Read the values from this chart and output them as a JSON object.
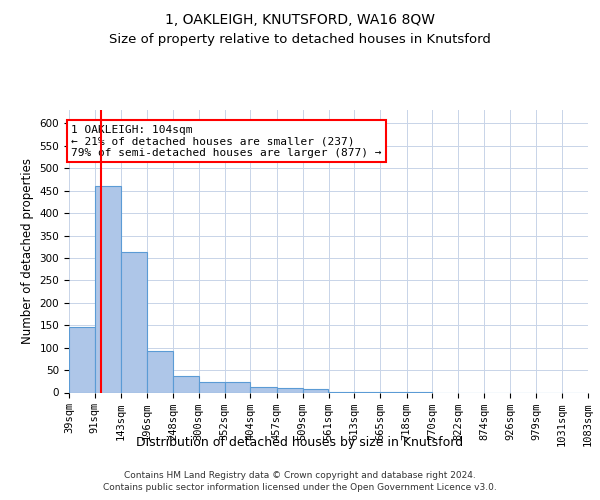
{
  "title": "1, OAKLEIGH, KNUTSFORD, WA16 8QW",
  "subtitle": "Size of property relative to detached houses in Knutsford",
  "xlabel": "Distribution of detached houses by size in Knutsford",
  "ylabel": "Number of detached properties",
  "bin_edges": [
    39,
    91,
    143,
    196,
    248,
    300,
    352,
    404,
    457,
    509,
    561,
    613,
    665,
    718,
    770,
    822,
    874,
    926,
    979,
    1031,
    1083
  ],
  "bar_heights": [
    147,
    460,
    313,
    93,
    37,
    23,
    23,
    13,
    10,
    7,
    2,
    2,
    1,
    1,
    0,
    0,
    0,
    0,
    0,
    0
  ],
  "bar_color": "#aec6e8",
  "bar_edgecolor": "#5b9bd5",
  "grid_color": "#c8d4e8",
  "red_line_x": 104,
  "annotation_line1": "1 OAKLEIGH: 104sqm",
  "annotation_line2": "← 21% of detached houses are smaller (237)",
  "annotation_line3": "79% of semi-detached houses are larger (877) →",
  "ylim_max": 630,
  "yticks": [
    0,
    50,
    100,
    150,
    200,
    250,
    300,
    350,
    400,
    450,
    500,
    550,
    600
  ],
  "footer": "Contains HM Land Registry data © Crown copyright and database right 2024.\nContains public sector information licensed under the Open Government Licence v3.0.",
  "title_fontsize": 10,
  "subtitle_fontsize": 9.5,
  "tick_fontsize": 7.5,
  "ylabel_fontsize": 8.5,
  "xlabel_fontsize": 9,
  "annotation_fontsize": 8,
  "footer_fontsize": 6.5
}
